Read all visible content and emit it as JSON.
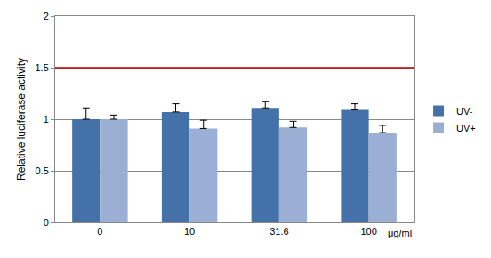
{
  "chart_data": {
    "type": "bar",
    "ylabel": "Relative luciferase activity",
    "xlabel": "μg/ml",
    "categories": [
      "0",
      "10",
      "31.6",
      "100"
    ],
    "series": [
      {
        "name": "UV-",
        "color": "#4472a8",
        "values": [
          1.0,
          1.07,
          1.11,
          1.09
        ],
        "errors": [
          0.11,
          0.08,
          0.06,
          0.06
        ]
      },
      {
        "name": "UV+",
        "color": "#9bafd4",
        "values": [
          1.0,
          0.91,
          0.92,
          0.87
        ],
        "errors": [
          0.04,
          0.08,
          0.06,
          0.07
        ]
      }
    ],
    "threshold": 1.5,
    "ylim": [
      0,
      2
    ],
    "yticks": [
      0,
      0.5,
      1,
      1.5,
      2
    ],
    "grid": true,
    "legend": "right"
  }
}
